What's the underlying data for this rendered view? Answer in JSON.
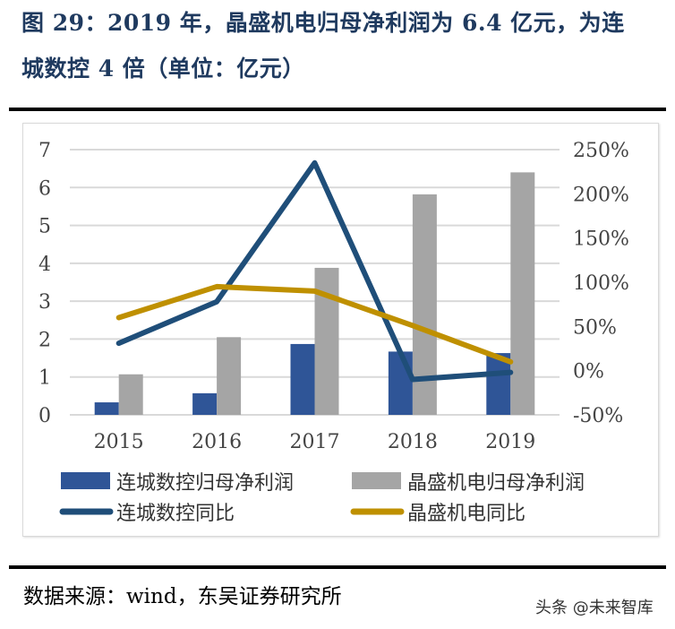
{
  "title_line1": "图 29：2019 年，晶盛机电归母净利润为 6.4 亿元，为连",
  "title_line2": "城数控 4 倍（单位：亿元）",
  "source": "数据来源：wind，东吴证券研究所",
  "watermark": "头条 @未来智库",
  "chart_data": {
    "type": "bar+line",
    "categories": [
      "2015",
      "2016",
      "2017",
      "2018",
      "2019"
    ],
    "left_axis": {
      "range": [
        0,
        7
      ],
      "ticks": [
        "0",
        "1",
        "2",
        "3",
        "4",
        "5",
        "6",
        "7"
      ]
    },
    "right_axis": {
      "range": [
        -50,
        250
      ],
      "ticks": [
        "-50%",
        "0%",
        "50%",
        "100%",
        "150%",
        "200%",
        "250%"
      ]
    },
    "grid": true,
    "legend_placement": "bottom",
    "series": [
      {
        "name": "连城数控归母净利润",
        "type": "bar",
        "axis": "left",
        "color": "#2f5597",
        "values": [
          0.33,
          0.57,
          1.87,
          1.67,
          1.63
        ]
      },
      {
        "name": "晶盛机电归母净利润",
        "type": "bar",
        "axis": "left",
        "color": "#a5a5a5",
        "values": [
          1.07,
          2.05,
          3.88,
          5.82,
          6.4
        ]
      },
      {
        "name": "连城数控同比",
        "type": "line",
        "axis": "right",
        "unit": "%",
        "color": "#1f4e79",
        "values": [
          31,
          78,
          235,
          -10,
          -2
        ]
      },
      {
        "name": "晶盛机电同比",
        "type": "line",
        "axis": "right",
        "unit": "%",
        "color": "#bf9000",
        "values": [
          60,
          95,
          90,
          51,
          10
        ]
      }
    ]
  }
}
